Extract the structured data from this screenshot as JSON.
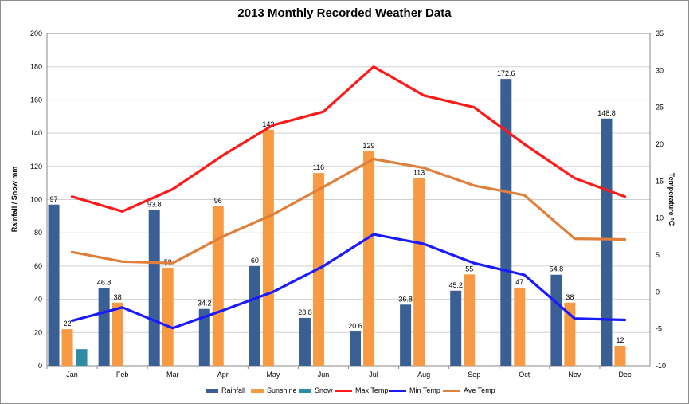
{
  "chart_data": {
    "type": "bar",
    "title": "2013 Monthly Recorded Weather Data",
    "ylabel": "Rainfall / Snow mm",
    "y2label": "Temperature °C",
    "ylim": [
      0,
      200
    ],
    "y2lim": [
      -10,
      35
    ],
    "yticks": [
      0,
      20,
      40,
      60,
      80,
      100,
      120,
      140,
      160,
      180,
      200
    ],
    "y2ticks": [
      -10,
      -5,
      0,
      5,
      10,
      15,
      20,
      25,
      30,
      35
    ],
    "categories": [
      "Jan",
      "Feb",
      "Mar",
      "Apr",
      "May",
      "Jun",
      "Jul",
      "Aug",
      "Sep",
      "Oct",
      "Nov",
      "Dec"
    ],
    "grid": true,
    "legend_position": "bottom",
    "bar_series": [
      {
        "name": "Rainfall",
        "color": "#3a5f94",
        "values": [
          97,
          46.8,
          93.8,
          34.2,
          60,
          28.8,
          20.6,
          36.8,
          45.2,
          172.6,
          54.8,
          148.8
        ],
        "labels": [
          "97",
          "46.8",
          "93.8",
          "34.2",
          "60",
          "28.8",
          "20.6",
          "36.8",
          "45.2",
          "172.6",
          "54.8",
          "148.8"
        ]
      },
      {
        "name": "Sunshine",
        "color": "#f79a43",
        "values": [
          22,
          38,
          59,
          96,
          142,
          116,
          129,
          113,
          55,
          47,
          38,
          12
        ],
        "labels": [
          "22",
          "38",
          "59",
          "96",
          "142",
          "116",
          "129",
          "113",
          "55",
          "47",
          "38",
          "12"
        ]
      },
      {
        "name": "Snow",
        "color": "#2e8ca5",
        "values": [
          10,
          0,
          0,
          0,
          0,
          0,
          0,
          0,
          0,
          0,
          0,
          0
        ],
        "labels": []
      }
    ],
    "line_series": [
      {
        "name": "Max Temp",
        "color": "#ff1a1a",
        "axis": "right",
        "values": [
          12.9,
          10.9,
          13.9,
          18.5,
          22.6,
          24.4,
          30.5,
          26.6,
          25.0,
          20.0,
          15.4,
          12.9
        ]
      },
      {
        "name": "Min Temp",
        "color": "#1a1aff",
        "axis": "right",
        "values": [
          -3.9,
          -2.1,
          -4.9,
          -2.5,
          0,
          3.5,
          7.8,
          6.5,
          3.9,
          2.3,
          -3.6,
          -3.8
        ]
      },
      {
        "name": "Ave Temp",
        "color": "#e07f3a",
        "axis": "right",
        "values": [
          5.4,
          4.1,
          3.9,
          7.5,
          10.5,
          14.2,
          18.0,
          16.8,
          14.4,
          13.1,
          7.2,
          7.1
        ]
      }
    ]
  }
}
